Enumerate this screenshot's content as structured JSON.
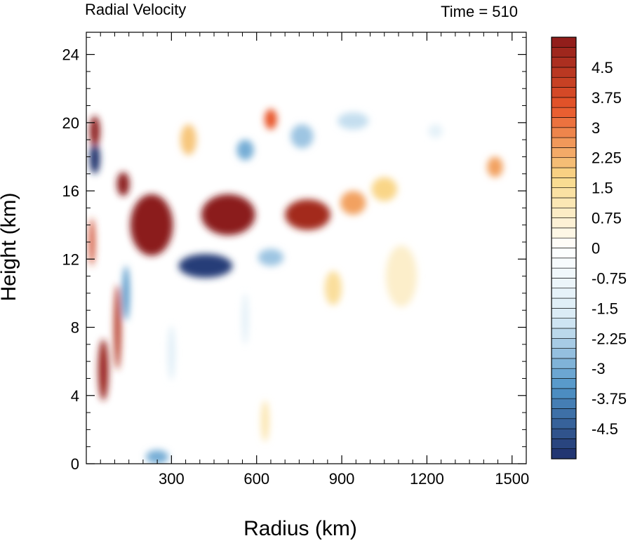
{
  "chart_data": {
    "type": "heatmap",
    "title_left": "Radial Velocity",
    "title_right": "Time = 510",
    "xlabel": "Radius (km)",
    "ylabel": "Height (km)",
    "xlim": [
      0,
      1550
    ],
    "ylim": [
      0,
      25.3
    ],
    "x_ticks": [
      300,
      600,
      900,
      1200,
      1500
    ],
    "x_tick_labels": [
      "300",
      "600",
      "900",
      "1200",
      "1500"
    ],
    "y_ticks": [
      0,
      4,
      8,
      12,
      16,
      20,
      24
    ],
    "y_tick_labels": [
      "0",
      "4",
      "8",
      "12",
      "16",
      "20",
      "24"
    ],
    "colorbar": {
      "min": -5.25,
      "max": 5.25,
      "step": 0.25,
      "labels": [
        "4.5",
        "3.75",
        "3",
        "2.25",
        "1.5",
        "0.75",
        "0",
        "-0.75",
        "-1.5",
        "-2.25",
        "-3",
        "-3.75",
        "-4.5"
      ],
      "label_values": [
        4.5,
        3.75,
        3,
        2.25,
        1.5,
        0.75,
        0,
        -0.75,
        -1.5,
        -2.25,
        -3,
        -3.75,
        -4.5
      ],
      "colors": {
        "positive_max": "#8b1a1a",
        "positive_mid": "#e8562a",
        "positive_low": "#f9d98a",
        "zero": "#ffffff",
        "negative_low": "#d8eaf5",
        "negative_mid": "#4f94c8",
        "negative_max": "#1f2f6b"
      }
    },
    "features": [
      {
        "x": 500,
        "y": 14.6,
        "value": 6.5
      },
      {
        "x": 230,
        "y": 14.0,
        "value": 6.5
      },
      {
        "x": 780,
        "y": 14.6,
        "value": 4.8
      },
      {
        "x": 940,
        "y": 15.3,
        "value": 2.5
      },
      {
        "x": 130,
        "y": 16.4,
        "value": 5.5
      },
      {
        "x": 420,
        "y": 11.6,
        "value": -5.0
      },
      {
        "x": 650,
        "y": 12.1,
        "value": -2.5
      },
      {
        "x": 30,
        "y": 17.9,
        "value": -5.5
      },
      {
        "x": 30,
        "y": 19.5,
        "value": 5.5
      },
      {
        "x": 360,
        "y": 19.0,
        "value": 2.0
      },
      {
        "x": 560,
        "y": 18.4,
        "value": -3.0
      },
      {
        "x": 650,
        "y": 20.2,
        "value": 3.5
      },
      {
        "x": 760,
        "y": 19.2,
        "value": -2.5
      },
      {
        "x": 940,
        "y": 20.1,
        "value": -2.0
      },
      {
        "x": 1050,
        "y": 16.1,
        "value": 1.8
      },
      {
        "x": 1440,
        "y": 17.4,
        "value": 2.5
      },
      {
        "x": 870,
        "y": 10.3,
        "value": 1.5
      },
      {
        "x": 1110,
        "y": 11.0,
        "value": 0.8
      },
      {
        "x": 1230,
        "y": 19.5,
        "value": -1.2
      },
      {
        "x": 110,
        "y": 8.0,
        "value": 4.5
      },
      {
        "x": 60,
        "y": 5.5,
        "value": 5.0
      },
      {
        "x": 20,
        "y": 13.0,
        "value": 4.0
      },
      {
        "x": 140,
        "y": 10.0,
        "value": -3.5
      },
      {
        "x": 300,
        "y": 6.5,
        "value": -1.5
      },
      {
        "x": 560,
        "y": 8.5,
        "value": -1.5
      },
      {
        "x": 630,
        "y": 2.5,
        "value": 1.2
      },
      {
        "x": 250,
        "y": 0.4,
        "value": -3.0
      }
    ]
  }
}
